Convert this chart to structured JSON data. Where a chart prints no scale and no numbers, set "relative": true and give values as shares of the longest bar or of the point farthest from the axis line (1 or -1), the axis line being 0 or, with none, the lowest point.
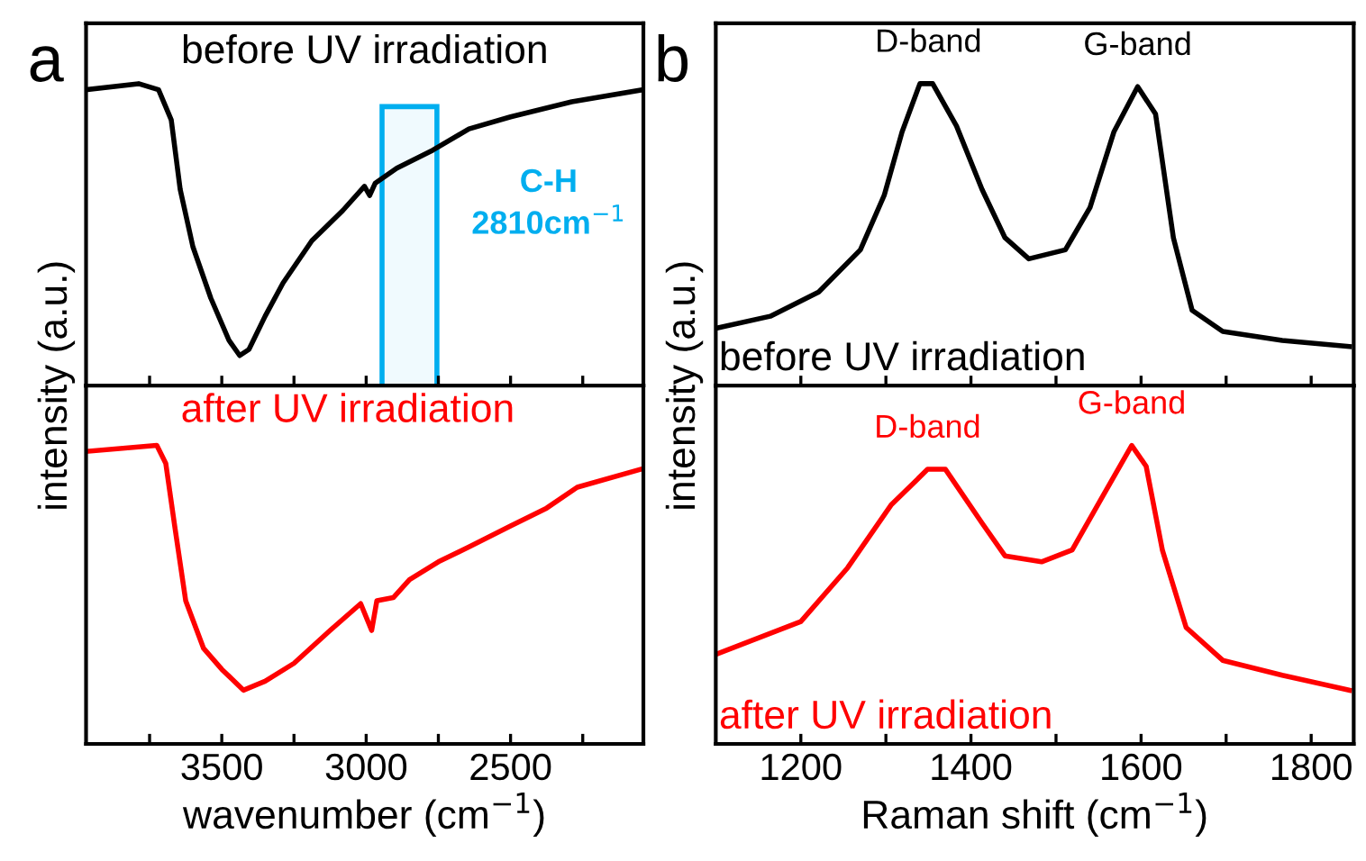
{
  "chart_data": [
    {
      "type": "line",
      "title": "a",
      "ylabel": "intensity (a.u.)",
      "relative": true,
      "tick_labels": false,
      "xlim": [
        3970,
        2040
      ],
      "xticks": [
        {
          "value": 3750,
          "label": null
        },
        3500,
        {
          "value": 3250,
          "label": null
        },
        3000,
        {
          "value": 2750,
          "label": null
        },
        2500,
        {
          "value": 2250,
          "label": null
        }
      ],
      "annotations": [
        "before UV irradiation"
      ],
      "bands": [
        {
          "axis": "x",
          "from": 2945,
          "to": 2755,
          "label": "C-H\n2810cm$^{−1}$",
          "color": "#00aeef"
        }
      ],
      "series": [
        {
          "color": "#000000",
          "x": [
            3969,
            3788,
            3719,
            3675,
            3644,
            3600,
            3538,
            3475,
            3438,
            3406,
            3350,
            3288,
            3188,
            3081,
            3006,
            2988,
            2969,
            2894,
            2769,
            2644,
            2500,
            2288,
            2040
          ],
          "values": [
            0.98,
            1,
            0.98,
            0.88,
            0.65,
            0.46,
            0.29,
            0.15,
            0.1,
            0.12,
            0.23,
            0.34,
            0.48,
            0.58,
            0.66,
            0.63,
            0.67,
            0.72,
            0.78,
            0.85,
            0.89,
            0.94,
            0.98
          ]
        }
      ]
    },
    {
      "type": "line",
      "xlabel": "wavenumber (cm$^{−1}$)",
      "relative": true,
      "tick_labels": "x",
      "xlim": [
        3970,
        2040
      ],
      "xticks": [
        {
          "value": 3750,
          "label": null
        },
        3500,
        {
          "value": 3250,
          "label": null
        },
        3000,
        {
          "value": 2750,
          "label": null
        },
        2500,
        {
          "value": 2250,
          "label": null
        }
      ],
      "annotations": [
        "after UV irradiation"
      ],
      "series": [
        {
          "color": "#ff0000",
          "x": [
            3969,
            3725,
            3694,
            3663,
            3625,
            3563,
            3500,
            3425,
            3350,
            3250,
            3125,
            3019,
            2981,
            2963,
            2906,
            2850,
            2750,
            2644,
            2500,
            2375,
            2269,
            2050
          ],
          "values": [
            0.98,
            1,
            0.94,
            0.73,
            0.48,
            0.32,
            0.25,
            0.18,
            0.21,
            0.27,
            0.38,
            0.47,
            0.38,
            0.48,
            0.49,
            0.55,
            0.61,
            0.66,
            0.73,
            0.79,
            0.86,
            0.92
          ]
        }
      ]
    },
    {
      "type": "line",
      "title": "b",
      "ylabel": "intensity (a.u.)",
      "relative": true,
      "tick_labels": false,
      "xlim": [
        1100,
        1850
      ],
      "xticks": [
        {
          "value": 1200,
          "label": null
        },
        {
          "value": 1300,
          "label": null
        },
        {
          "value": 1400,
          "label": null
        },
        {
          "value": 1500,
          "label": null
        },
        {
          "value": 1600,
          "label": null
        },
        {
          "value": 1700,
          "label": null
        },
        {
          "value": 1800,
          "label": null
        }
      ],
      "annotations": [
        {
          "text": "D-band",
          "x": 1350,
          "y": 1
        },
        {
          "text": "G-band",
          "x": 1596,
          "y": 0.99
        },
        "before UV irradiation"
      ],
      "series": [
        {
          "color": "#000000",
          "x": [
            1100,
            1164,
            1221,
            1270,
            1298,
            1319,
            1340,
            1355,
            1383,
            1413,
            1440,
            1468,
            1511,
            1540,
            1568,
            1596,
            1617,
            1638,
            1660,
            1696,
            1766,
            1845
          ],
          "values": [
            0.19,
            0.23,
            0.31,
            0.45,
            0.63,
            0.84,
            1,
            1,
            0.86,
            0.65,
            0.49,
            0.42,
            0.45,
            0.59,
            0.84,
            0.99,
            0.9,
            0.49,
            0.25,
            0.18,
            0.15,
            0.13
          ]
        }
      ]
    },
    {
      "type": "line",
      "xlabel": "Raman shift (cm$^{−1}$)",
      "relative": true,
      "tick_labels": "x",
      "xlim": [
        1100,
        1850
      ],
      "xticks": [
        1200,
        {
          "value": 1300,
          "label": null
        },
        1400,
        {
          "value": 1500,
          "label": null
        },
        1600,
        {
          "value": 1700,
          "label": null
        },
        1800
      ],
      "annotations": [
        {
          "text": "D-band",
          "x": 1349,
          "y": 0.92
        },
        {
          "text": "G-band",
          "x": 1589,
          "y": 1
        },
        "after UV irradiation"
      ],
      "series": [
        {
          "color": "#ff0000",
          "x": [
            1100,
            1200,
            1255,
            1306,
            1349,
            1370,
            1413,
            1440,
            1483,
            1519,
            1553,
            1589,
            1606,
            1625,
            1653,
            1696,
            1766,
            1845
          ],
          "values": [
            0.3,
            0.41,
            0.59,
            0.8,
            0.92,
            0.92,
            0.74,
            0.63,
            0.61,
            0.65,
            0.82,
            1,
            0.93,
            0.65,
            0.39,
            0.28,
            0.23,
            0.18
          ]
        }
      ]
    }
  ]
}
